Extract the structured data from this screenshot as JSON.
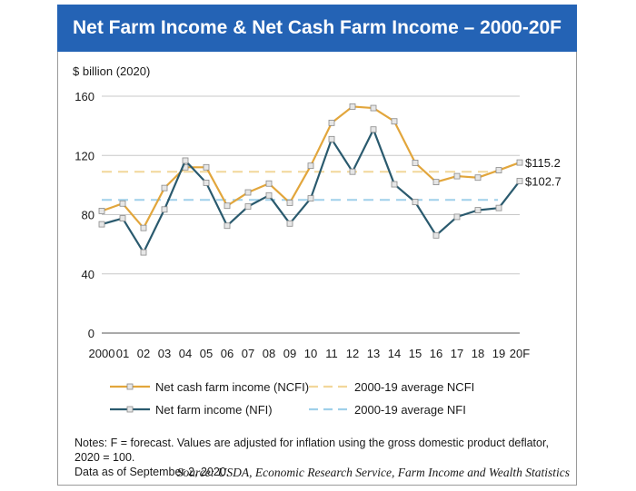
{
  "header": {
    "title": "Net Farm Income & Net Cash Farm Income – 2000-20F"
  },
  "colors": {
    "title_bg": "#2463b5",
    "ncfi": "#e2a63c",
    "nfi": "#2a5a6e",
    "ncfi_avg": "#f2d79a",
    "nfi_avg": "#9fd0ea",
    "grid": "#c8c8c8"
  },
  "chart_data": {
    "type": "line",
    "ylabel": "$ billion (2020)",
    "ylim": [
      0,
      160
    ],
    "yticks": [
      0,
      40,
      80,
      120,
      160
    ],
    "categories": [
      "2000",
      "01",
      "02",
      "03",
      "04",
      "05",
      "06",
      "07",
      "08",
      "09",
      "10",
      "11",
      "12",
      "13",
      "14",
      "15",
      "16",
      "17",
      "18",
      "19",
      "20F"
    ],
    "grid": true,
    "series": [
      {
        "name": "Net cash farm income (NCFI)",
        "color": "#e2a63c",
        "values": [
          82.5,
          87.5,
          71,
          98,
          112,
          112,
          86,
          95,
          101,
          88,
          113,
          142,
          153,
          152,
          143,
          115,
          102,
          106,
          105,
          110,
          115.2
        ]
      },
      {
        "name": "Net farm income (NFI)",
        "color": "#2a5a6e",
        "values": [
          73.5,
          77.5,
          54.5,
          83.5,
          116.5,
          101.5,
          72.5,
          85.5,
          93,
          74,
          91,
          131,
          109,
          137.5,
          100.5,
          88.5,
          66,
          78.5,
          83,
          84.5,
          102.7
        ]
      }
    ],
    "averages": [
      {
        "name": "2000-19 average NCFI",
        "value": 109,
        "color": "#f2d79a"
      },
      {
        "name": "2000-19 average NFI",
        "value": 90,
        "color": "#9fd0ea"
      }
    ],
    "annotations": [
      {
        "series": 0,
        "label": "$115.2"
      },
      {
        "series": 1,
        "label": "$102.7"
      }
    ],
    "legend_position": "bottom"
  },
  "notes": {
    "line1": "Notes: F = forecast. Values are adjusted for inflation using the gross domestic product deflator, 2020 = 100.",
    "line2": "Data as of September 2, 2020.",
    "source": "Source: USDA, Economic Research Service, Farm Income and Wealth Statistics"
  }
}
